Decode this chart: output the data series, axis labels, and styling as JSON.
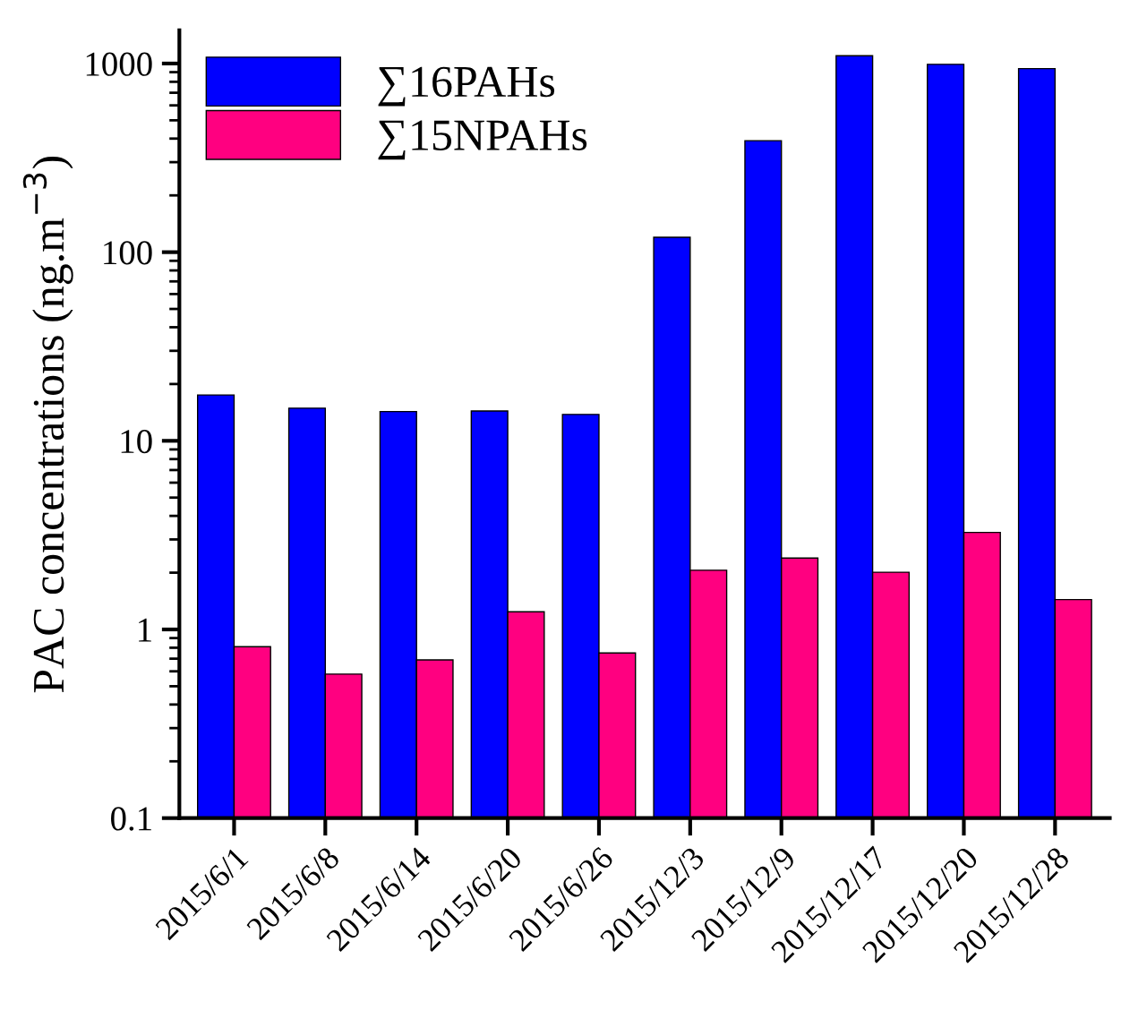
{
  "chart_data": {
    "type": "bar",
    "ylabel": "PAC concentrations (ng.m$^{−3}$)",
    "categories": [
      "2015/6/1",
      "2015/6/8",
      "2015/6/14",
      "2015/6/20",
      "2015/6/26",
      "2015/12/3",
      "2015/12/9",
      "2015/12/17",
      "2015/12/20",
      "2015/12/28"
    ],
    "series": [
      {
        "name": "∑16PAHs",
        "color": "#0000ff",
        "values": [
          17.5,
          14.9,
          14.3,
          14.4,
          13.8,
          120,
          390,
          1100,
          990,
          940
        ]
      },
      {
        "name": "∑15NPAHs",
        "color": "#ff0080",
        "values": [
          0.81,
          0.58,
          0.69,
          1.24,
          0.75,
          2.06,
          2.39,
          2.01,
          3.27,
          1.44
        ]
      }
    ],
    "log": "y",
    "ylim": [
      0.1,
      1500
    ],
    "yticks": [
      0.1,
      1,
      10,
      100,
      1000
    ],
    "grid": false,
    "legend": "top left"
  }
}
